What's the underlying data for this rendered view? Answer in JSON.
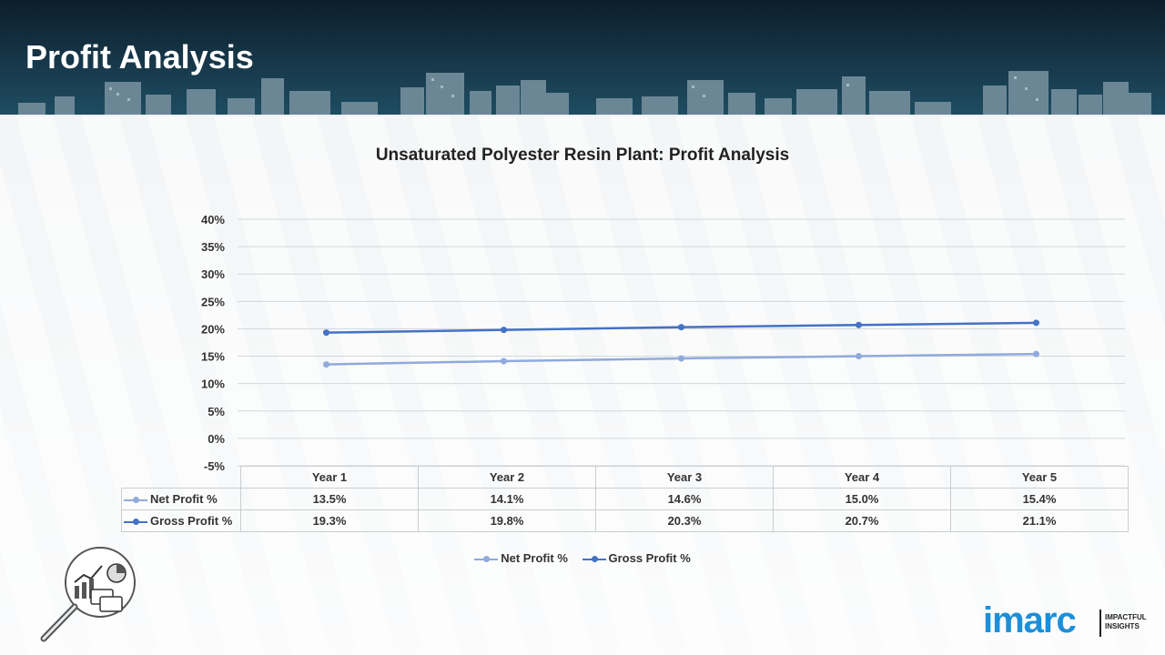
{
  "header": {
    "title": "Profit Analysis"
  },
  "chart_data": {
    "type": "line",
    "title": "Unsaturated Polyester Resin Plant: Profit Analysis",
    "categories": [
      "Year 1",
      "Year 2",
      "Year 3",
      "Year 4",
      "Year 5"
    ],
    "series": [
      {
        "name": "Net Profit %",
        "values": [
          13.5,
          14.1,
          14.6,
          15.0,
          15.4
        ],
        "labels": [
          "13.5%",
          "14.1%",
          "14.6%",
          "15.0%",
          "15.4%"
        ],
        "color": "#8faadc"
      },
      {
        "name": "Gross Profit %",
        "values": [
          19.3,
          19.8,
          20.3,
          20.7,
          21.1
        ],
        "labels": [
          "19.3%",
          "19.8%",
          "20.3%",
          "20.7%",
          "21.1%"
        ],
        "color": "#4472c4"
      }
    ],
    "ylim": [
      -5,
      40
    ],
    "yticks": [
      "40%",
      "35%",
      "30%",
      "25%",
      "20%",
      "15%",
      "10%",
      "5%",
      "0%",
      "-5%"
    ],
    "ytick_values": [
      40,
      35,
      30,
      25,
      20,
      15,
      10,
      5,
      0,
      -5
    ],
    "grid": true,
    "legend_position": "bottom",
    "xlabel": "",
    "ylabel": ""
  },
  "logo": {
    "brand": "imarc",
    "tagline_1": "IMPACTFUL",
    "tagline_2": "INSIGHTS"
  },
  "icons": {
    "decorative": "analysis-magnifier-icon"
  },
  "colors": {
    "header_bg": "#17384a",
    "net": "#8faadc",
    "gross": "#4472c4",
    "brand": "#1d8fd8"
  }
}
